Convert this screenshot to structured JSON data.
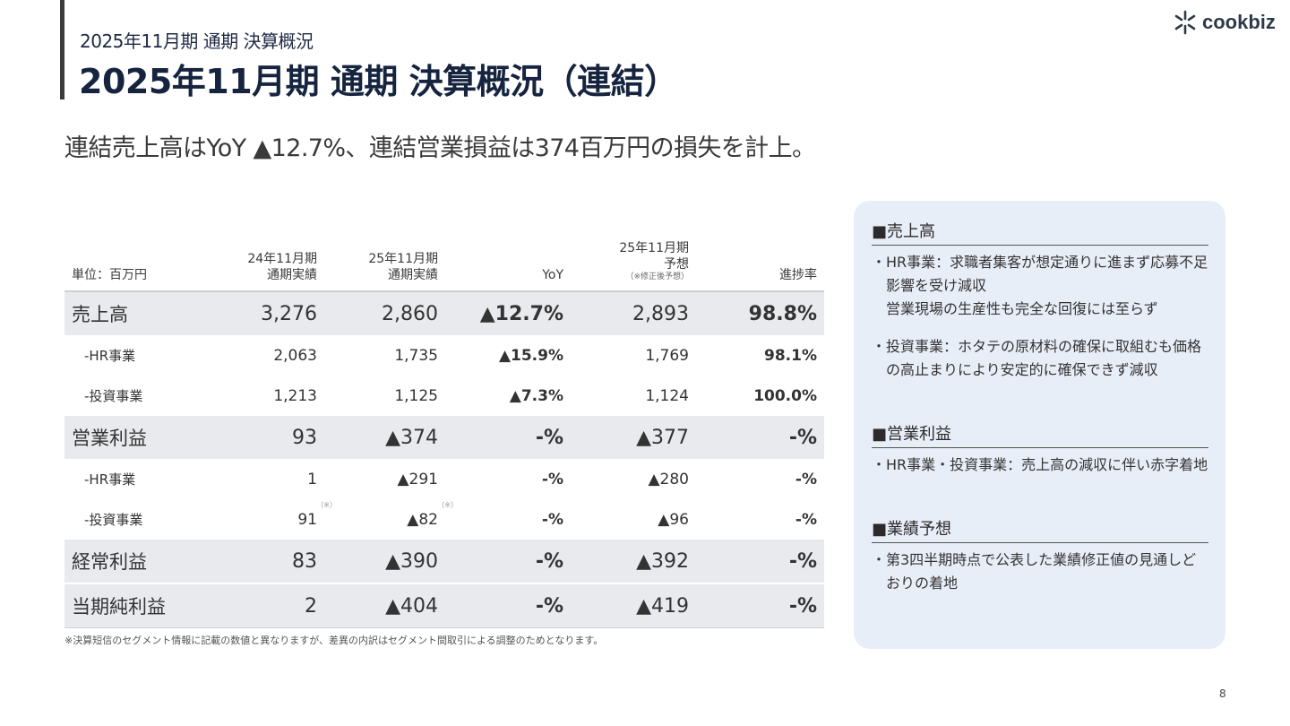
{
  "header": {
    "subtitle": "2025年11月期 通期 決算概況",
    "title": "2025年11月期 通期 決算概況（連結）",
    "logo_text": "cookbiz"
  },
  "headline": "連結売上高はYoY ▲12.7%、連結営業損益は374百万円の損失を計上。",
  "table": {
    "headers": {
      "unit": "単位：百万円",
      "fy24_l1": "24年11月期",
      "fy24_l2": "通期実績",
      "fy25_l1": "25年11月期",
      "fy25_l2": "通期実績",
      "yoy": "YoY",
      "fc_l1": "25年11月期",
      "fc_l2": "予想",
      "fc_note": "（※修正後予想）",
      "progress": "進捗率"
    },
    "rows": [
      {
        "label": "売上高",
        "fy24": "3,276",
        "fy25": "2,860",
        "yoy": "▲12.7%",
        "forecast": "2,893",
        "progress": "98.8%"
      },
      {
        "label": "-HR事業",
        "fy24": "2,063",
        "fy25": "1,735",
        "yoy": "▲15.9%",
        "forecast": "1,769",
        "progress": "98.1%"
      },
      {
        "label": "-投資事業",
        "fy24": "1,213",
        "fy25": "1,125",
        "yoy": "▲7.3%",
        "forecast": "1,124",
        "progress": "100.0%"
      },
      {
        "label": "営業利益",
        "fy24": "93",
        "fy25": "▲374",
        "yoy": "-%",
        "forecast": "▲377",
        "progress": "-%"
      },
      {
        "label": "-HR事業",
        "fy24": "1",
        "fy25": "▲291",
        "yoy": "-%",
        "forecast": "▲280",
        "progress": "-%"
      },
      {
        "label": "-投資事業",
        "fy24": "91",
        "fy25": "▲82",
        "yoy": "-%",
        "forecast": "▲96",
        "progress": "-%"
      },
      {
        "label": "経常利益",
        "fy24": "83",
        "fy25": "▲390",
        "yoy": "-%",
        "forecast": "▲392",
        "progress": "-%"
      },
      {
        "label": "当期純利益",
        "fy24": "2",
        "fy25": "▲404",
        "yoy": "-%",
        "forecast": "▲419",
        "progress": "-%"
      }
    ],
    "star_mark": "（※）"
  },
  "footnote": "※決算短信のセグメント情報に記載の数値と異なりますが、差異の内訳はセグメント間取引による調整のためとなります。",
  "panel": {
    "sec1_title": "■売上高",
    "sec1_b1": "・HR事業：求職者集客が想定通りに進まず応募不足影響を受け減収",
    "sec1_b1_cont": "営業現場の生産性も完全な回復には至らず",
    "sec1_b2": "・投資事業：ホタテの原材料の確保に取組むも価格の高止まりにより安定的に確保できず減収",
    "sec2_title": "■営業利益",
    "sec2_b1": "・HR事業・投資事業：売上高の減収に伴い赤字着地",
    "sec3_title": "■業績予想",
    "sec3_b1": "・第3四半期時点で公表した業績修正値の見通しどおりの着地"
  },
  "page_number": "8"
}
